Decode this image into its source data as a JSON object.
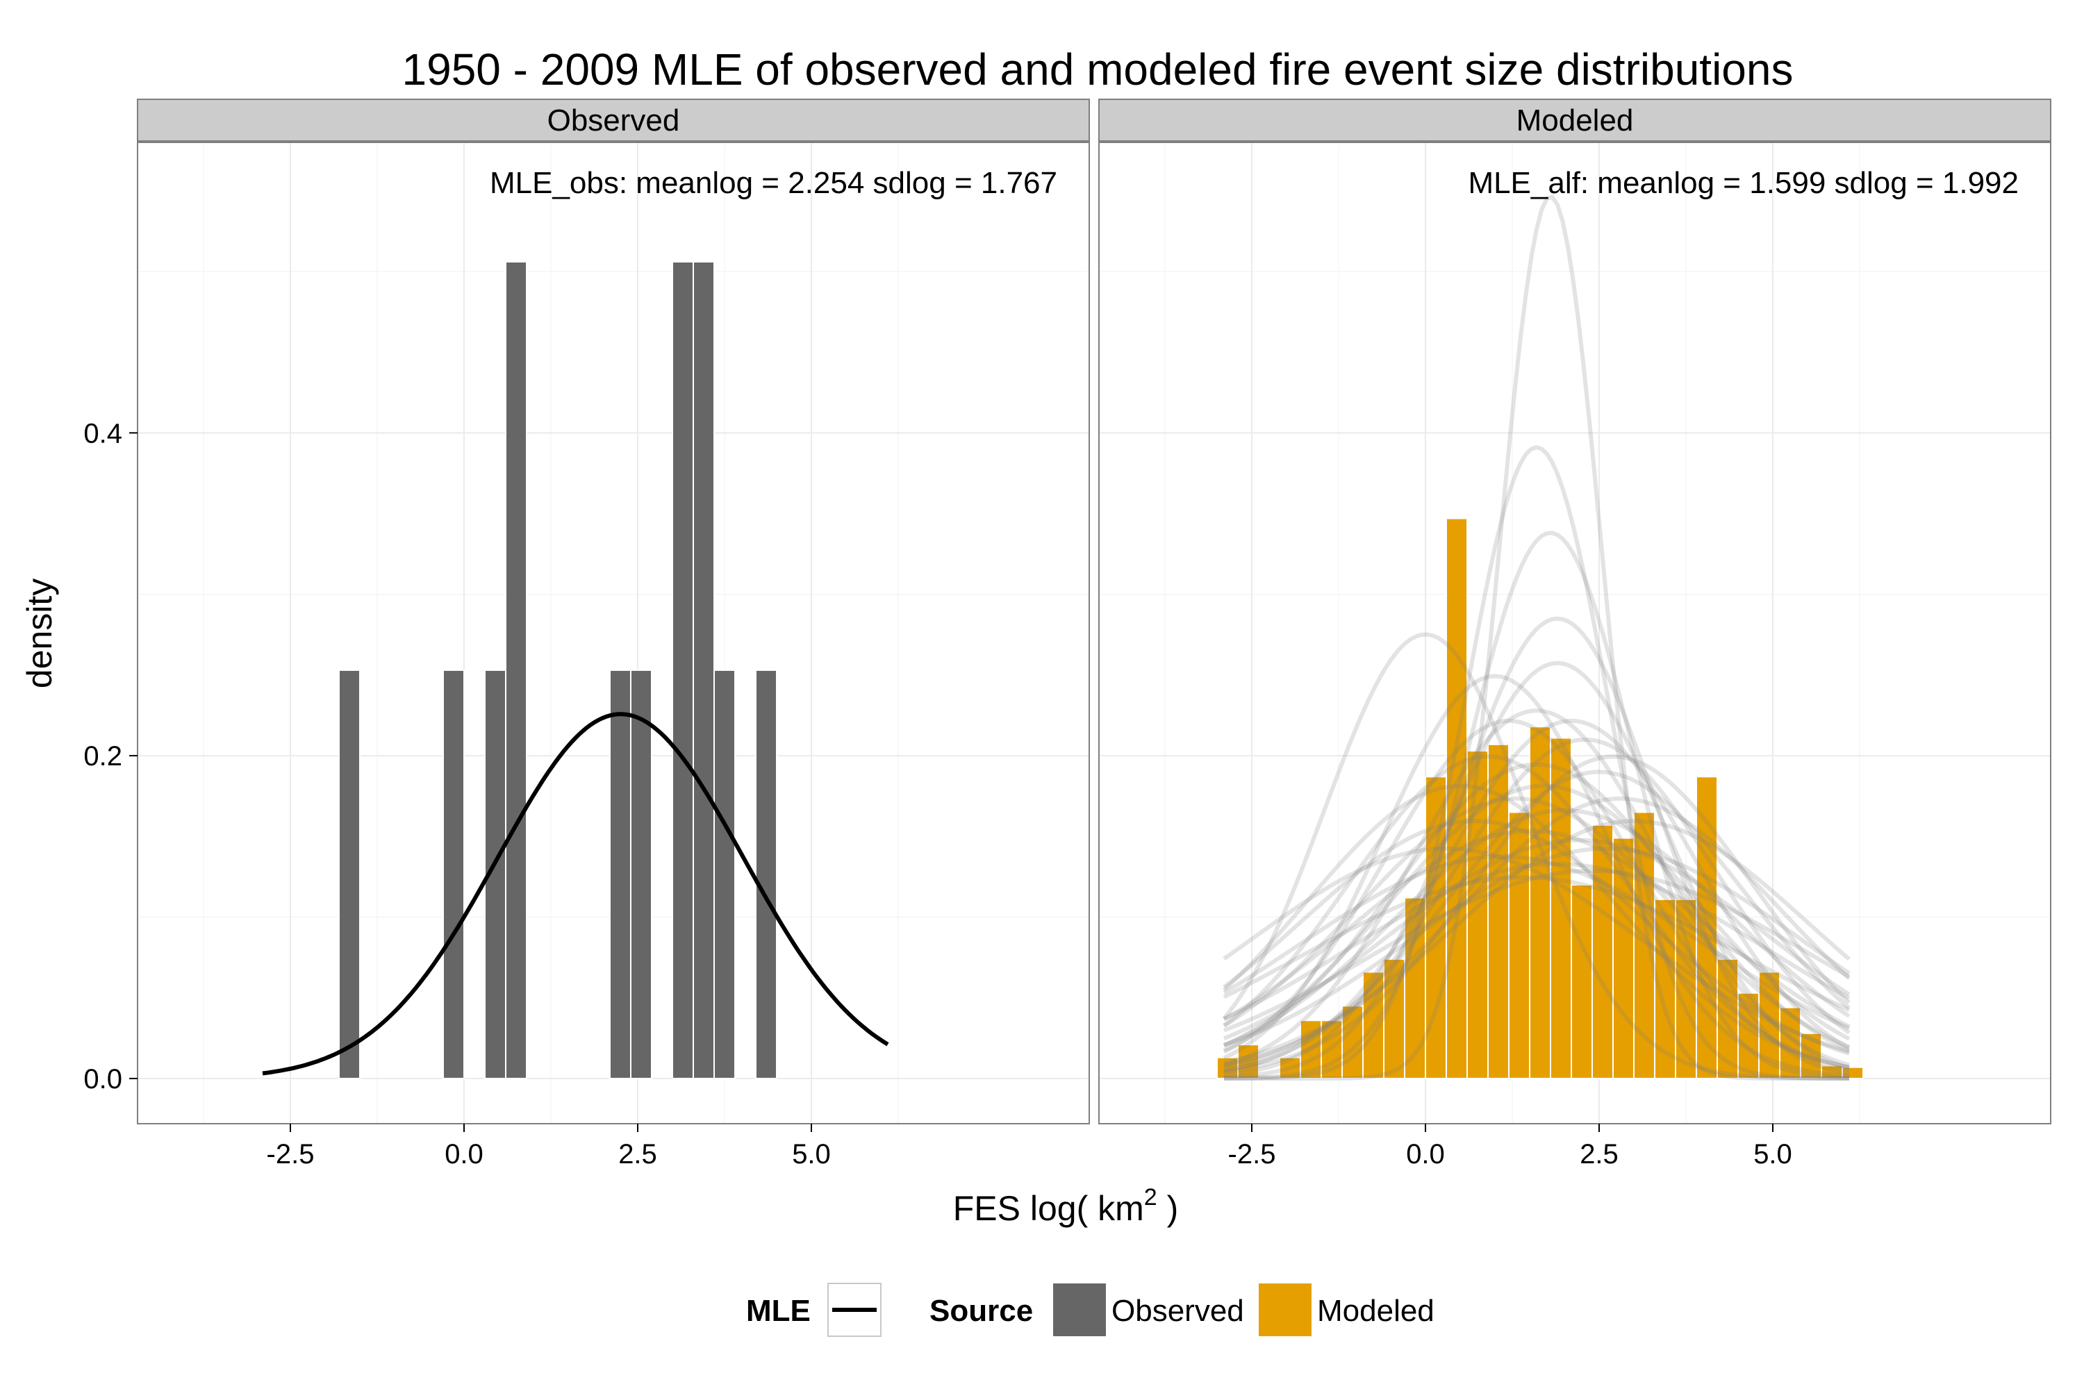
{
  "chart_data": {
    "type": "bar",
    "title": "1950 - 2009 MLE of observed and modeled fire event size distributions",
    "xlabel": "FES log( km",
    "xlabel_sup": "2",
    "xlabel_end": " )",
    "ylabel": "density",
    "xlim": [
      -4.7,
      9.0
    ],
    "ylim": [
      -0.028,
      0.58
    ],
    "x_ticks": [
      -2.5,
      0.0,
      2.5,
      5.0
    ],
    "x_tick_labels": [
      "-2.5",
      "0.0",
      "2.5",
      "5.0"
    ],
    "y_ticks": [
      0.0,
      0.2,
      0.4
    ],
    "y_tick_labels": [
      "0.0",
      "0.2",
      "0.4"
    ],
    "grid": true,
    "legend_position": "bottom",
    "colors": {
      "observed": "#666666",
      "modeled": "#E69F00",
      "mle_line": "#000000",
      "sim_curves": "#808080",
      "strip_bg": "#cccccc",
      "grid_major": "#ebebeb",
      "grid_minor": "#f5f5f5",
      "panel_border": "#7f7f7f"
    },
    "panels": [
      {
        "strip": "Observed",
        "annotation": "MLE_obs: meanlog = 2.254 sdlog = 1.767",
        "bar_fill": "observed",
        "bin_width": 0.3,
        "bars": [
          {
            "x": -1.65,
            "y": 0.253
          },
          {
            "x": -0.15,
            "y": 0.253
          },
          {
            "x": 0.45,
            "y": 0.253
          },
          {
            "x": 0.75,
            "y": 0.506
          },
          {
            "x": 2.25,
            "y": 0.253
          },
          {
            "x": 2.55,
            "y": 0.253
          },
          {
            "x": 3.15,
            "y": 0.506
          },
          {
            "x": 3.45,
            "y": 0.506
          },
          {
            "x": 3.75,
            "y": 0.253
          },
          {
            "x": 4.35,
            "y": 0.253
          }
        ],
        "mle_curve": {
          "meanlog": 2.254,
          "sdlog": 1.767,
          "from": -2.9,
          "to": 6.1
        }
      },
      {
        "strip": "Modeled",
        "annotation": "MLE_alf: meanlog = 1.599 sdlog = 1.992",
        "bar_fill": "modeled",
        "bin_width": 0.3,
        "bars": [
          {
            "x": -2.85,
            "y": 0.013
          },
          {
            "x": -2.55,
            "y": 0.021
          },
          {
            "x": -2.25,
            "y": 0.0
          },
          {
            "x": -1.95,
            "y": 0.013
          },
          {
            "x": -1.65,
            "y": 0.036
          },
          {
            "x": -1.35,
            "y": 0.036
          },
          {
            "x": -1.05,
            "y": 0.045
          },
          {
            "x": -0.75,
            "y": 0.066
          },
          {
            "x": -0.45,
            "y": 0.074
          },
          {
            "x": -0.15,
            "y": 0.112
          },
          {
            "x": 0.15,
            "y": 0.187
          },
          {
            "x": 0.45,
            "y": 0.347
          },
          {
            "x": 0.75,
            "y": 0.203
          },
          {
            "x": 1.05,
            "y": 0.207
          },
          {
            "x": 1.35,
            "y": 0.165
          },
          {
            "x": 1.65,
            "y": 0.218
          },
          {
            "x": 1.95,
            "y": 0.211
          },
          {
            "x": 2.25,
            "y": 0.12
          },
          {
            "x": 2.55,
            "y": 0.157
          },
          {
            "x": 2.85,
            "y": 0.149
          },
          {
            "x": 3.15,
            "y": 0.165
          },
          {
            "x": 3.45,
            "y": 0.111
          },
          {
            "x": 3.75,
            "y": 0.111
          },
          {
            "x": 4.05,
            "y": 0.187
          },
          {
            "x": 4.35,
            "y": 0.074
          },
          {
            "x": 4.65,
            "y": 0.053
          },
          {
            "x": 4.95,
            "y": 0.066
          },
          {
            "x": 5.25,
            "y": 0.044
          },
          {
            "x": 5.55,
            "y": 0.028
          },
          {
            "x": 5.85,
            "y": 0.008
          },
          {
            "x": 6.15,
            "y": 0.007
          }
        ],
        "sim_curves": {
          "from": -2.9,
          "to": 6.1,
          "params": [
            [
              1.8,
              0.73
            ],
            [
              1.6,
              1.02
            ],
            [
              1.8,
              1.18
            ],
            [
              1.9,
              1.4
            ],
            [
              1.9,
              1.55
            ],
            [
              0.0,
              1.45
            ],
            [
              2.1,
              1.8
            ],
            [
              1.2,
              1.8
            ],
            [
              1.6,
              1.75
            ],
            [
              2.3,
              1.9
            ],
            [
              0.9,
              2.0
            ],
            [
              1.7,
              2.2
            ],
            [
              2.5,
              2.1
            ],
            [
              1.3,
              2.3
            ],
            [
              2.0,
              2.4
            ],
            [
              0.5,
              2.2
            ],
            [
              2.8,
              2.3
            ],
            [
              1.5,
              2.6
            ],
            [
              2.2,
              2.7
            ],
            [
              0.7,
              2.5
            ],
            [
              1.1,
              2.9
            ],
            [
              2.6,
              2.8
            ],
            [
              1.9,
              3.0
            ],
            [
              3.0,
              2.5
            ],
            [
              1.4,
              3.2
            ],
            [
              2.4,
              3.1
            ],
            [
              0.3,
              2.8
            ],
            [
              1.6,
              2.05
            ],
            [
              1.0,
              1.6
            ],
            [
              2.7,
              2.0
            ]
          ]
        }
      }
    ],
    "legend": [
      {
        "title": "MLE",
        "items": [
          {
            "label": "",
            "kind": "line",
            "color": "mle_line"
          }
        ]
      },
      {
        "title": "Source",
        "items": [
          {
            "label": "Observed",
            "kind": "fill",
            "color": "observed"
          },
          {
            "label": "Modeled",
            "kind": "fill",
            "color": "modeled"
          }
        ]
      }
    ]
  }
}
